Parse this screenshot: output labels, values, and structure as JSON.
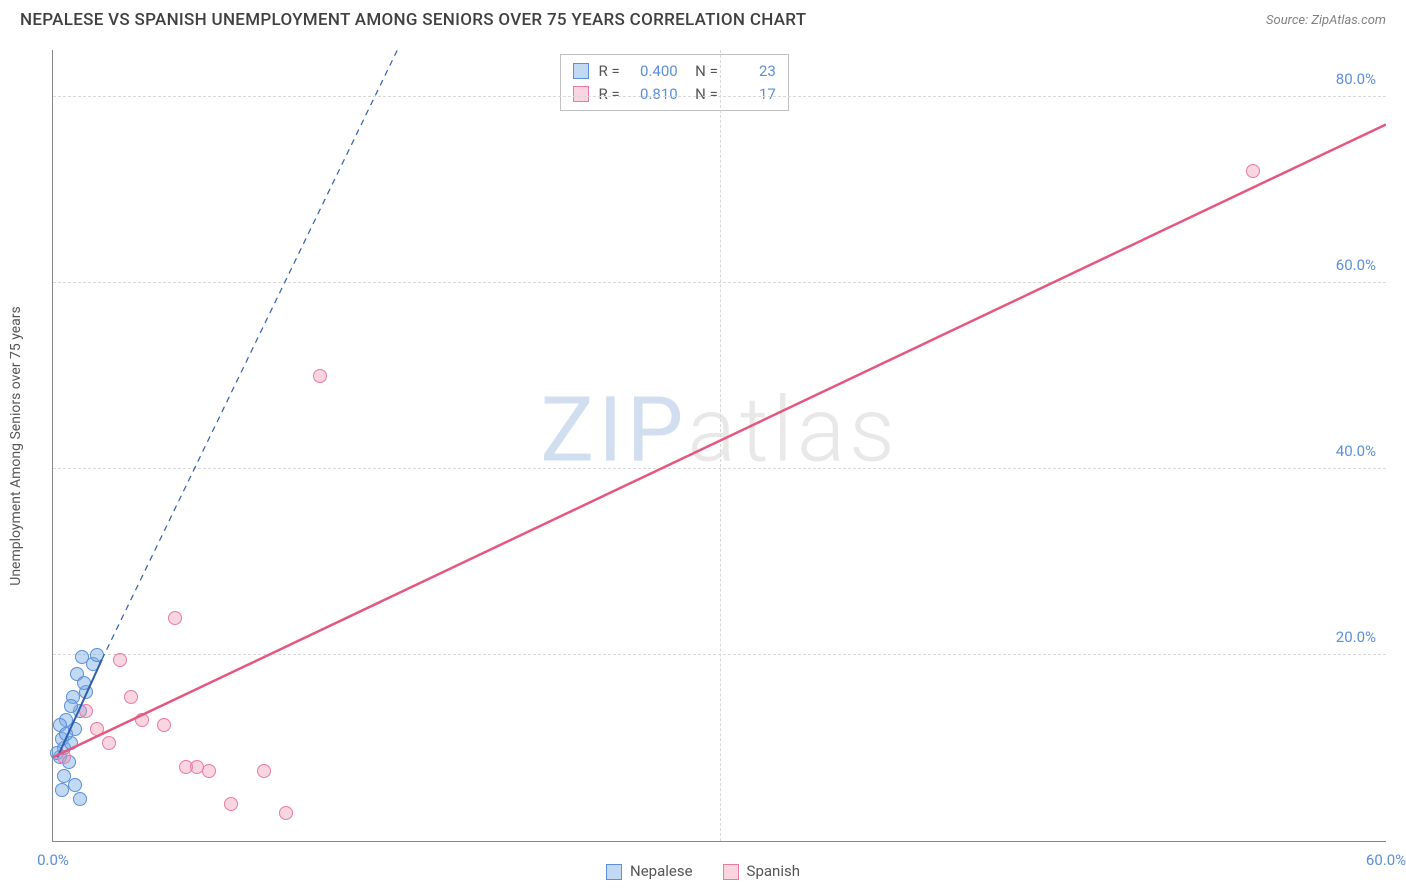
{
  "header": {
    "title": "NEPALESE VS SPANISH UNEMPLOYMENT AMONG SENIORS OVER 75 YEARS CORRELATION CHART",
    "source_label": "Source: ZipAtlas.com"
  },
  "chart": {
    "type": "scatter",
    "ylabel": "Unemployment Among Seniors over 75 years",
    "watermark": {
      "left": "ZIP",
      "right": "atlas"
    },
    "background_color": "#ffffff",
    "grid_color": "#d8d8d8",
    "axis_color": "#888888",
    "tick_color": "#5b8fd9",
    "xlim": [
      0,
      60
    ],
    "ylim": [
      0,
      85
    ],
    "xticks": [
      {
        "v": 0,
        "l": "0.0%"
      },
      {
        "v": 60,
        "l": "60.0%"
      }
    ],
    "yticks": [
      {
        "v": 20,
        "l": "20.0%"
      },
      {
        "v": 40,
        "l": "40.0%"
      },
      {
        "v": 60,
        "l": "60.0%"
      },
      {
        "v": 80,
        "l": "80.0%"
      }
    ],
    "xgrid": [
      30
    ],
    "series": {
      "nepalese": {
        "label": "Nepalese",
        "fill": "rgba(120,170,230,0.45)",
        "stroke": "#5b8fd9",
        "R": "0.400",
        "N": "23",
        "marker_radius": 7,
        "points": [
          [
            0.3,
            9.0
          ],
          [
            0.5,
            10.0
          ],
          [
            0.4,
            11.0
          ],
          [
            0.8,
            10.5
          ],
          [
            1.0,
            12.0
          ],
          [
            0.6,
            13.0
          ],
          [
            1.2,
            14.0
          ],
          [
            0.9,
            15.5
          ],
          [
            1.5,
            16.0
          ],
          [
            1.1,
            18.0
          ],
          [
            1.8,
            19.0
          ],
          [
            1.3,
            19.8
          ],
          [
            2.0,
            20.0
          ],
          [
            0.7,
            8.5
          ],
          [
            0.5,
            7.0
          ],
          [
            1.0,
            6.0
          ],
          [
            0.4,
            5.5
          ],
          [
            1.2,
            4.5
          ],
          [
            0.3,
            12.5
          ],
          [
            0.6,
            11.5
          ],
          [
            0.8,
            14.5
          ],
          [
            1.4,
            17.0
          ],
          [
            0.2,
            9.5
          ]
        ],
        "trend": {
          "x1": 0.2,
          "y1": 9.0,
          "x2": 2.2,
          "y2": 19.5,
          "dash_ext": {
            "x1": 2.2,
            "y1": 19.5,
            "x2": 15.5,
            "y2": 85.0
          },
          "color": "#2f5fa8",
          "width": 2,
          "dash": "6,5"
        }
      },
      "spanish": {
        "label": "Spanish",
        "fill": "rgba(240,150,175,0.40)",
        "stroke": "#e97ba2",
        "R": "0.810",
        "N": "17",
        "marker_radius": 7,
        "points": [
          [
            0.5,
            9.0
          ],
          [
            2.0,
            12.0
          ],
          [
            3.0,
            19.5
          ],
          [
            3.5,
            15.5
          ],
          [
            4.0,
            13.0
          ],
          [
            5.0,
            12.5
          ],
          [
            6.0,
            8.0
          ],
          [
            6.5,
            8.0
          ],
          [
            7.0,
            7.5
          ],
          [
            8.0,
            4.0
          ],
          [
            9.5,
            7.5
          ],
          [
            10.5,
            3.0
          ],
          [
            5.5,
            24.0
          ],
          [
            12.0,
            50.0
          ],
          [
            54.0,
            72.0
          ],
          [
            2.5,
            10.5
          ],
          [
            1.5,
            14.0
          ]
        ],
        "trend": {
          "x1": 0,
          "y1": 9.0,
          "x2": 60,
          "y2": 77.0,
          "color": "#e5577f",
          "width": 2.5,
          "dash": ""
        }
      }
    }
  },
  "legend_bottom": [
    {
      "label": "Nepalese",
      "fill": "rgba(120,170,230,0.45)",
      "stroke": "#5b8fd9"
    },
    {
      "label": "Spanish",
      "fill": "rgba(240,150,175,0.40)",
      "stroke": "#e97ba2"
    }
  ]
}
